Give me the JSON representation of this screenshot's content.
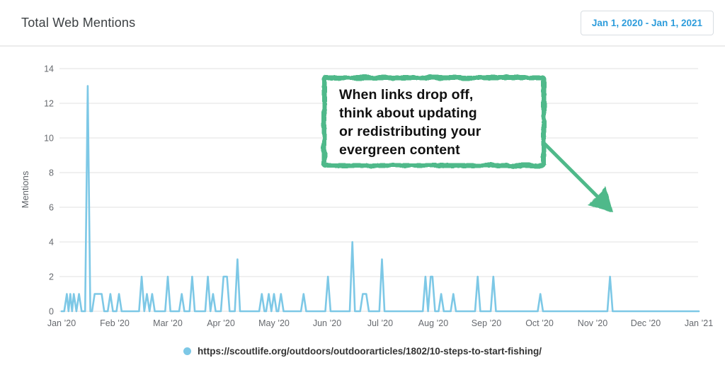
{
  "header": {
    "title": "Total Web Mentions",
    "date_range_label": "Jan 1, 2020 - Jan 1, 2021"
  },
  "colors": {
    "accent_blue": "#2D9CDB",
    "line_blue": "#7DC8E6",
    "annotation_green": "#4FB98A",
    "grid_line": "#ececec",
    "axis_text": "#66696e"
  },
  "annotation": {
    "lines": [
      "When links drop off,",
      "think about updating",
      "or redistributing your",
      "evergreen content"
    ]
  },
  "legend": {
    "items": [
      {
        "label": "https://scoutlife.org/outdoors/outdoorarticles/1802/10-steps-to-start-fishing/",
        "color": "#7DC8E6"
      }
    ]
  },
  "chart_data": {
    "type": "line",
    "title": "Total Web Mentions",
    "xlabel": "",
    "ylabel": "Mentions",
    "x_range": [
      "2020-01-01",
      "2021-01-01"
    ],
    "ylim": [
      0,
      14
    ],
    "y_ticks": [
      0,
      2,
      4,
      6,
      8,
      10,
      12,
      14
    ],
    "x_tick_labels": [
      "Jan ’20",
      "Feb ’20",
      "Mar ’20",
      "Apr ’20",
      "May ’20",
      "Jun ’20",
      "Jul ’20",
      "Aug ’20",
      "Sep ’20",
      "Oct ’20",
      "Nov ’20",
      "Dec ’20",
      "Jan ’21"
    ],
    "grid": "horizontal",
    "legend_position": "bottom-center",
    "series": [
      {
        "name": "https://scoutlife.org/outdoors/outdoorarticles/1802/10-steps-to-start-fishing/",
        "color": "#7DC8E6",
        "frequency": "daily",
        "baseline_value": 0,
        "nonzero_points": [
          [
            "2020-01-04",
            1
          ],
          [
            "2020-01-06",
            1
          ],
          [
            "2020-01-08",
            1
          ],
          [
            "2020-01-11",
            1
          ],
          [
            "2020-01-16",
            13
          ],
          [
            "2020-01-20",
            1
          ],
          [
            "2020-01-21",
            1
          ],
          [
            "2020-01-22",
            1
          ],
          [
            "2020-01-23",
            1
          ],
          [
            "2020-01-24",
            1
          ],
          [
            "2020-01-29",
            1
          ],
          [
            "2020-02-03",
            1
          ],
          [
            "2020-02-16",
            2
          ],
          [
            "2020-02-19",
            1
          ],
          [
            "2020-02-22",
            1
          ],
          [
            "2020-03-02",
            2
          ],
          [
            "2020-03-10",
            1
          ],
          [
            "2020-03-16",
            2
          ],
          [
            "2020-03-25",
            2
          ],
          [
            "2020-03-28",
            1
          ],
          [
            "2020-04-03",
            2
          ],
          [
            "2020-04-04",
            2
          ],
          [
            "2020-04-05",
            2
          ],
          [
            "2020-04-11",
            3
          ],
          [
            "2020-04-25",
            1
          ],
          [
            "2020-04-29",
            1
          ],
          [
            "2020-05-02",
            1
          ],
          [
            "2020-05-06",
            1
          ],
          [
            "2020-05-19",
            1
          ],
          [
            "2020-06-02",
            2
          ],
          [
            "2020-06-16",
            4
          ],
          [
            "2020-06-22",
            1
          ],
          [
            "2020-06-23",
            1
          ],
          [
            "2020-06-24",
            1
          ],
          [
            "2020-07-03",
            3
          ],
          [
            "2020-07-28",
            2
          ],
          [
            "2020-07-31",
            2
          ],
          [
            "2020-08-01",
            2
          ],
          [
            "2020-08-06",
            1
          ],
          [
            "2020-08-13",
            1
          ],
          [
            "2020-08-27",
            2
          ],
          [
            "2020-09-05",
            2
          ],
          [
            "2020-10-02",
            1
          ],
          [
            "2020-11-11",
            2
          ]
        ]
      }
    ]
  }
}
